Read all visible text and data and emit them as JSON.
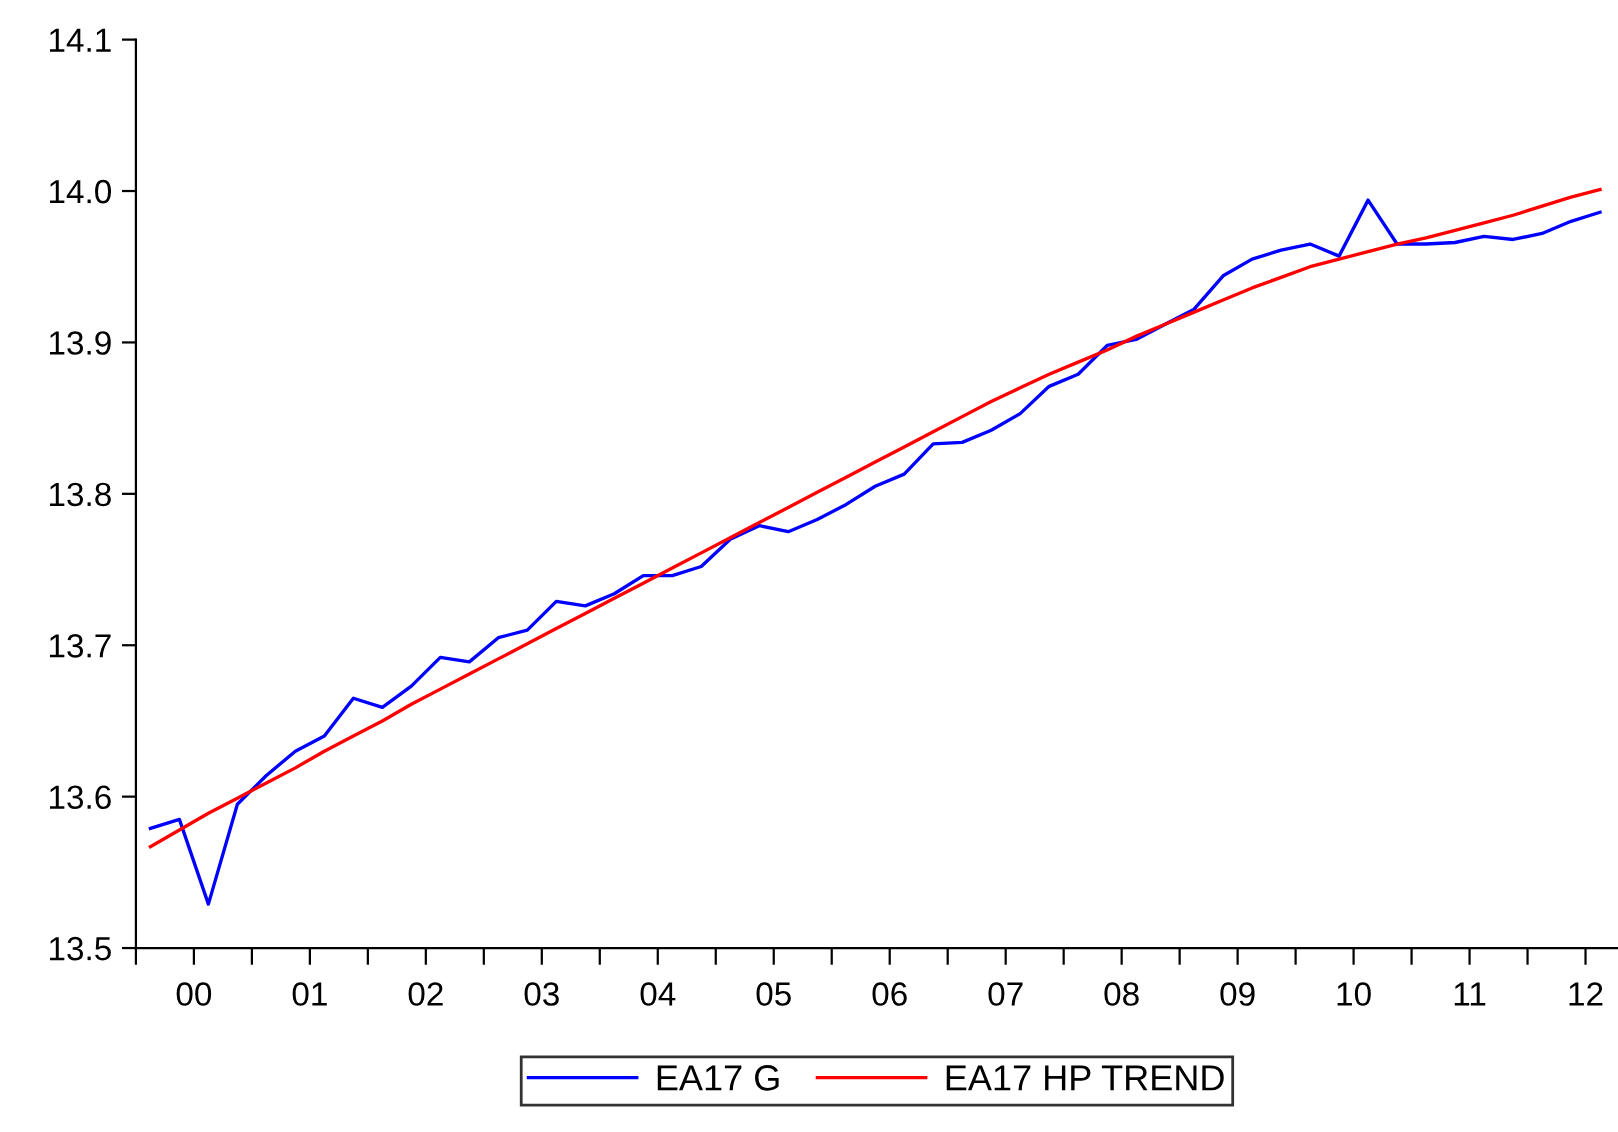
{
  "chart_data": {
    "type": "line",
    "x": [
      -0.375,
      -0.125,
      0.125,
      0.375,
      0.625,
      0.875,
      1.125,
      1.375,
      1.625,
      1.875,
      2.125,
      2.375,
      2.625,
      2.875,
      3.125,
      3.375,
      3.625,
      3.875,
      4.125,
      4.375,
      4.625,
      4.875,
      5.125,
      5.375,
      5.625,
      5.875,
      6.125,
      6.375,
      6.625,
      6.875,
      7.125,
      7.375,
      7.625,
      7.875,
      8.125,
      8.375,
      8.625,
      8.875,
      9.125,
      9.375,
      9.625,
      9.875,
      10.125,
      10.375,
      10.625,
      10.875,
      11.125,
      11.375,
      11.625,
      11.875,
      12.125
    ],
    "series": [
      {
        "name": "EA17 G",
        "color": "#0000ff",
        "values": [
          13.579,
          13.585,
          13.529,
          13.595,
          13.614,
          13.63,
          13.64,
          13.665,
          13.659,
          13.673,
          13.692,
          13.689,
          13.705,
          13.71,
          13.729,
          13.726,
          13.734,
          13.746,
          13.746,
          13.752,
          13.77,
          13.779,
          13.775,
          13.783,
          13.793,
          13.805,
          13.813,
          13.833,
          13.834,
          13.842,
          13.853,
          13.871,
          13.879,
          13.898,
          13.902,
          13.912,
          13.922,
          13.944,
          13.955,
          13.961,
          13.965,
          13.957,
          13.994,
          13.965,
          13.965,
          13.966,
          13.97,
          13.968,
          13.972,
          13.98,
          13.986
        ]
      },
      {
        "name": "EA17 HP TREND",
        "color": "#ff0000",
        "values": [
          13.567,
          13.578,
          13.589,
          13.599,
          13.609,
          13.619,
          13.63,
          13.64,
          13.65,
          13.661,
          13.671,
          13.681,
          13.691,
          13.701,
          13.711,
          13.721,
          13.731,
          13.741,
          13.751,
          13.761,
          13.771,
          13.781,
          13.791,
          13.801,
          13.811,
          13.821,
          13.831,
          13.841,
          13.851,
          13.861,
          13.87,
          13.879,
          13.887,
          13.895,
          13.904,
          13.912,
          13.92,
          13.928,
          13.936,
          13.943,
          13.95,
          13.955,
          13.96,
          13.965,
          13.969,
          13.974,
          13.979,
          13.984,
          13.99,
          13.996,
          14.001
        ]
      }
    ],
    "xlim": [
      -0.5,
      12.28
    ],
    "xticks": [
      {
        "value": -0.5,
        "label": null
      },
      {
        "value": 0,
        "label": "00"
      },
      {
        "value": 0.5,
        "label": null
      },
      {
        "value": 1,
        "label": "01"
      },
      {
        "value": 1.5,
        "label": null
      },
      {
        "value": 2,
        "label": "02"
      },
      {
        "value": 2.5,
        "label": null
      },
      {
        "value": 3,
        "label": "03"
      },
      {
        "value": 3.5,
        "label": null
      },
      {
        "value": 4,
        "label": "04"
      },
      {
        "value": 4.5,
        "label": null
      },
      {
        "value": 5,
        "label": "05"
      },
      {
        "value": 5.5,
        "label": null
      },
      {
        "value": 6,
        "label": "06"
      },
      {
        "value": 6.5,
        "label": null
      },
      {
        "value": 7,
        "label": "07"
      },
      {
        "value": 7.5,
        "label": null
      },
      {
        "value": 8,
        "label": "08"
      },
      {
        "value": 8.5,
        "label": null
      },
      {
        "value": 9,
        "label": "09"
      },
      {
        "value": 9.5,
        "label": null
      },
      {
        "value": 10,
        "label": "10"
      },
      {
        "value": 10.5,
        "label": null
      },
      {
        "value": 11,
        "label": "11"
      },
      {
        "value": 11.5,
        "label": null
      },
      {
        "value": 12,
        "label": "12"
      }
    ],
    "ylim": [
      13.5,
      14.1
    ],
    "yticks": [
      {
        "value": 13.5,
        "label": "13.5"
      },
      {
        "value": 13.6,
        "label": "13.6"
      },
      {
        "value": 13.7,
        "label": "13.7"
      },
      {
        "value": 13.8,
        "label": "13.8"
      },
      {
        "value": 13.9,
        "label": "13.9"
      },
      {
        "value": 14.0,
        "label": "14.0"
      },
      {
        "value": 14.1,
        "label": "14.1"
      }
    ],
    "legend": "bottom",
    "grid": false,
    "marker": "none",
    "line_style": "solid"
  }
}
